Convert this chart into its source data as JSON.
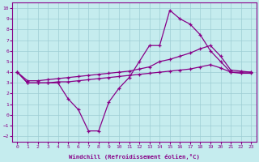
{
  "xlabel": "Windchill (Refroidissement éolien,°C)",
  "background_color": "#c5ecee",
  "grid_color": "#9dcdd4",
  "line_color": "#880088",
  "line1_x": [
    0,
    1,
    2,
    3,
    4,
    5,
    6,
    7,
    8,
    9,
    10,
    11,
    12,
    13,
    14,
    15,
    16,
    17,
    18,
    19,
    20,
    21,
    22,
    23
  ],
  "line1_y": [
    4.0,
    3.0,
    3.0,
    3.0,
    3.0,
    1.5,
    0.5,
    -1.5,
    -1.5,
    1.2,
    2.5,
    3.5,
    5.0,
    6.5,
    6.5,
    9.8,
    9.0,
    8.5,
    7.5,
    6.0,
    5.0,
    4.0,
    4.0,
    4.0
  ],
  "line2_x": [
    0,
    1,
    2,
    3,
    4,
    5,
    6,
    7,
    8,
    9,
    10,
    11,
    12,
    13,
    14,
    15,
    16,
    17,
    18,
    19,
    20,
    21,
    22,
    23
  ],
  "line2_y": [
    4.0,
    3.2,
    3.2,
    3.3,
    3.4,
    3.5,
    3.6,
    3.7,
    3.8,
    3.9,
    4.0,
    4.1,
    4.3,
    4.5,
    5.0,
    5.2,
    5.5,
    5.8,
    6.2,
    6.5,
    5.5,
    4.2,
    4.1,
    4.0
  ],
  "line3_x": [
    0,
    1,
    2,
    3,
    4,
    5,
    6,
    7,
    8,
    9,
    10,
    11,
    12,
    13,
    14,
    15,
    16,
    17,
    18,
    19,
    20,
    21,
    22,
    23
  ],
  "line3_y": [
    4.0,
    3.0,
    3.0,
    3.0,
    3.1,
    3.1,
    3.2,
    3.3,
    3.4,
    3.5,
    3.6,
    3.7,
    3.8,
    3.9,
    4.0,
    4.1,
    4.2,
    4.3,
    4.5,
    4.7,
    4.4,
    4.0,
    3.9,
    3.9
  ],
  "ylim": [
    -2.5,
    10.5
  ],
  "xlim": [
    -0.5,
    23.5
  ],
  "yticks": [
    -2,
    -1,
    0,
    1,
    2,
    3,
    4,
    5,
    6,
    7,
    8,
    9,
    10
  ],
  "xticks": [
    0,
    1,
    2,
    3,
    4,
    5,
    6,
    7,
    8,
    9,
    10,
    11,
    12,
    13,
    14,
    15,
    16,
    17,
    18,
    19,
    20,
    21,
    22,
    23
  ]
}
